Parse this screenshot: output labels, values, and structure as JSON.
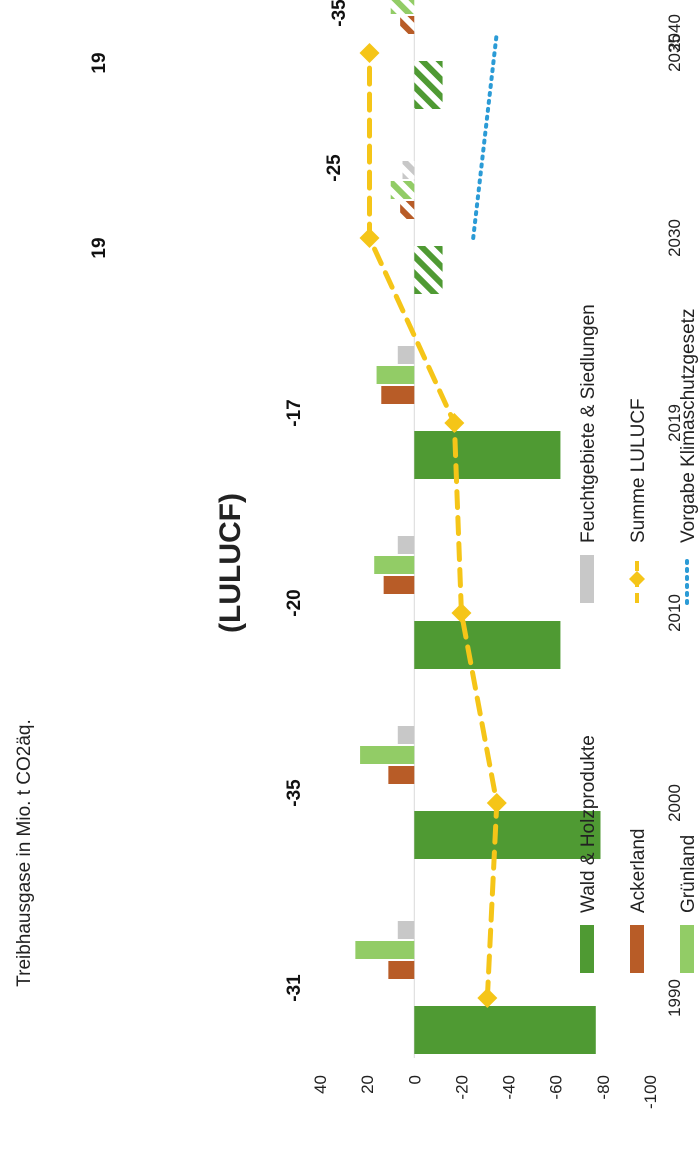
{
  "chart_data": {
    "type": "bar",
    "title": "(LULUCF)",
    "ylabel": "Treibhausgase in Mio. t CO2äq.",
    "ylim": [
      -100,
      40
    ],
    "yticks": [
      40,
      20,
      0,
      -20,
      -40,
      -60,
      -80,
      -100
    ],
    "categories": [
      "1990",
      "2000",
      "2010",
      "2019",
      "2030",
      "2035",
      "2040"
    ],
    "series": [
      {
        "name": "Wald & Holzprodukte",
        "type": "bar",
        "color": "#4f9a33",
        "values": [
          -77,
          -79,
          -62,
          -62,
          -12,
          -12,
          null
        ]
      },
      {
        "name": "Ackerland",
        "type": "bar",
        "color": "#b85c27",
        "values": [
          11,
          11,
          13,
          14,
          6,
          6,
          null
        ]
      },
      {
        "name": "Grünland",
        "type": "bar",
        "color": "#92cc66",
        "values": [
          25,
          23,
          17,
          16,
          10,
          10,
          null
        ]
      },
      {
        "name": "Feuchtgebiete & Siedlungen",
        "type": "bar",
        "color": "#c8c8c8",
        "values": [
          7,
          7,
          7,
          7,
          5,
          5,
          null
        ]
      },
      {
        "name": "Summe LULUCF",
        "type": "line",
        "color": "#f5c518",
        "values": [
          -31,
          -35,
          -20,
          -17,
          19,
          19,
          null
        ]
      },
      {
        "name": "Vorgabe Klimaschutzgesetz",
        "type": "line",
        "color": "#2b9bd6",
        "values": [
          null,
          null,
          null,
          null,
          -25,
          null,
          -35
        ]
      }
    ],
    "projected_categories": [
      "2030",
      "2035"
    ],
    "data_labels": [
      {
        "category": "1990",
        "text": "-31"
      },
      {
        "category": "2000",
        "text": "-35"
      },
      {
        "category": "2010",
        "text": "-20"
      },
      {
        "category": "2019",
        "text": "-17"
      },
      {
        "category": "2030",
        "text": "19"
      },
      {
        "category": "2030",
        "text": "-25"
      },
      {
        "category": "2035",
        "text": "19"
      },
      {
        "category": "2040",
        "text": "-35"
      }
    ],
    "legend": {
      "position": "bottom",
      "items": [
        {
          "label": "Wald & Holzprodukte",
          "icon": "bar-swatch",
          "color": "#4f9a33"
        },
        {
          "label": "Ackerland",
          "icon": "bar-swatch",
          "color": "#b85c27"
        },
        {
          "label": "Grünland",
          "icon": "bar-swatch",
          "color": "#92cc66"
        },
        {
          "label": "Feuchtgebiete & Siedlungen",
          "icon": "bar-swatch",
          "color": "#c8c8c8"
        },
        {
          "label": "Summe LULUCF",
          "icon": "dashed-line-diamond",
          "color": "#f5c518"
        },
        {
          "label": "Vorgabe Klimaschutzgesetz",
          "icon": "dotted-line",
          "color": "#2b9bd6"
        }
      ]
    }
  }
}
